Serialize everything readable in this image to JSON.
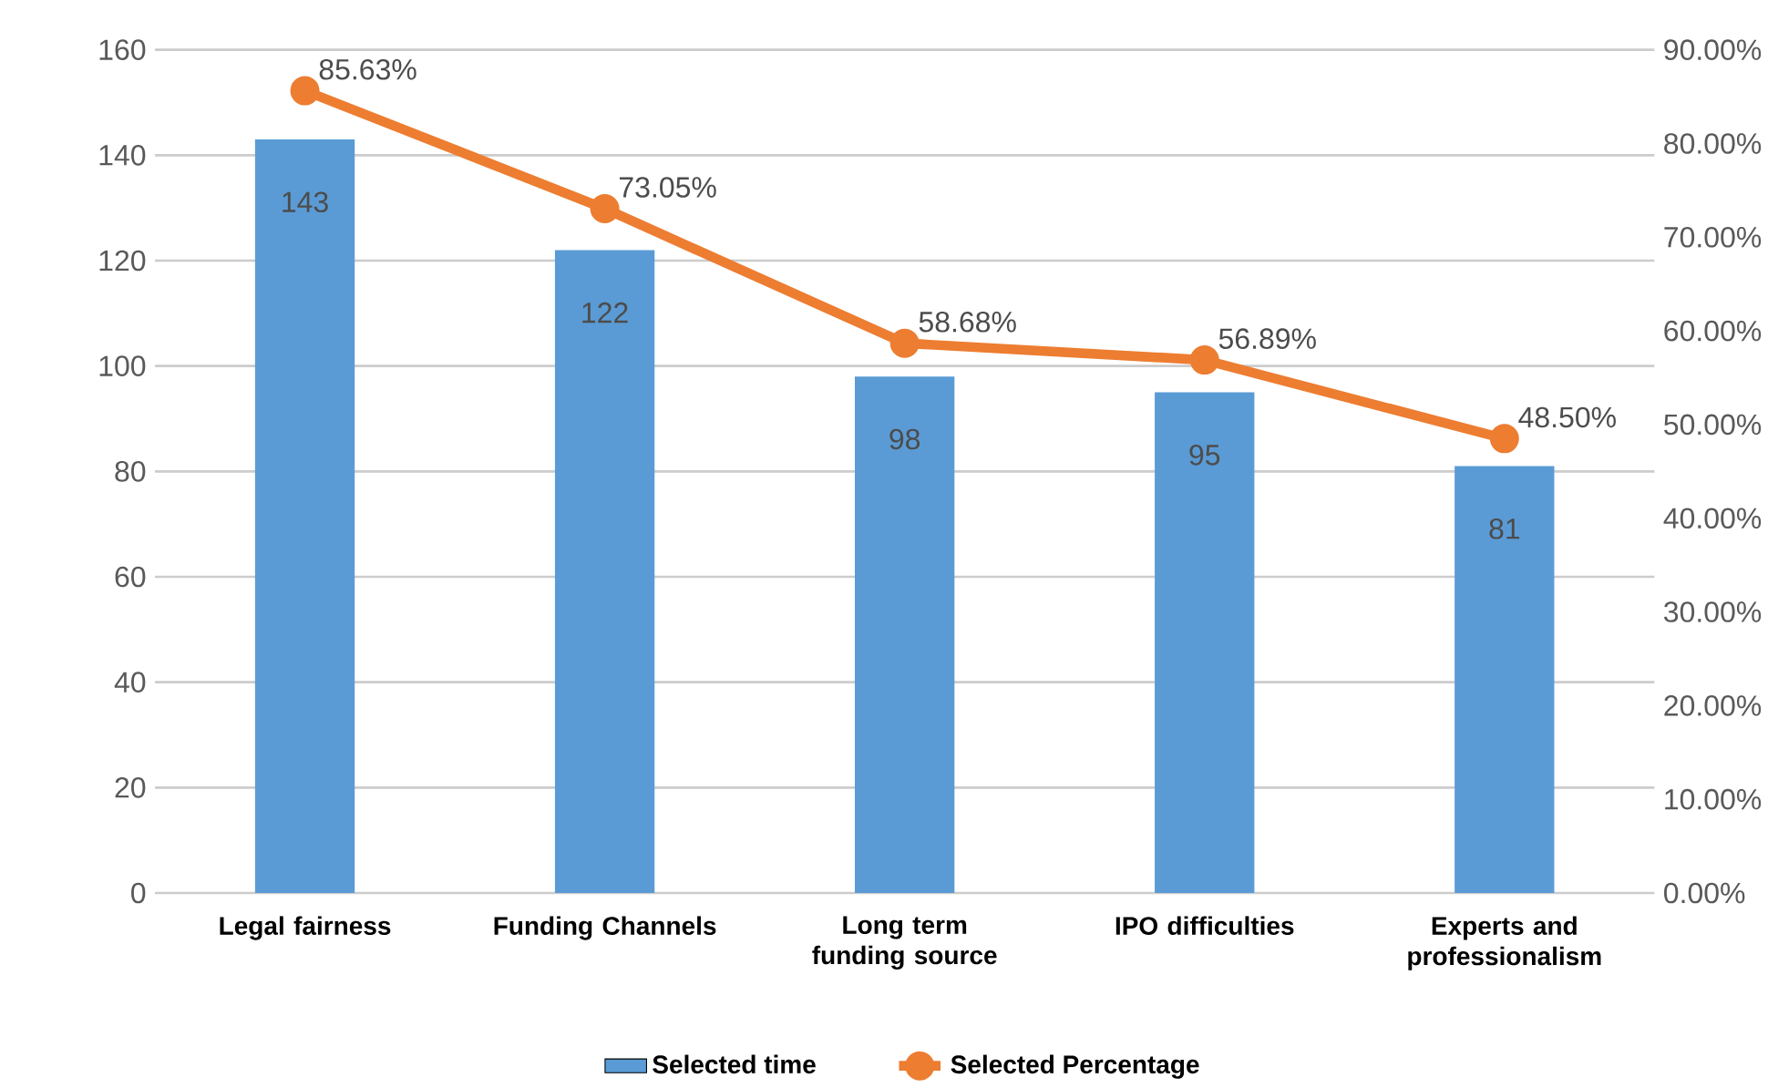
{
  "chart_data": {
    "type": "bar",
    "categories": [
      "Legal fairness",
      "Funding Channels",
      "Long term funding source",
      "IPO difficulties",
      "Experts and professionalism"
    ],
    "series": [
      {
        "name": "Selected time",
        "color": "#5b9bd5",
        "values": [
          143,
          122,
          98,
          95,
          81
        ],
        "value_labels": [
          "143",
          "122",
          "98",
          "95",
          "81"
        ]
      },
      {
        "name": "Selected Percentage",
        "type": "line",
        "axis": "y2",
        "color": "#ed7d31",
        "values": [
          85.63,
          73.05,
          58.68,
          56.89,
          48.5
        ],
        "value_labels": [
          "85.63%",
          "73.05%",
          "58.68%",
          "56.89%",
          "48.50%"
        ]
      }
    ],
    "ylim": [
      0,
      160
    ],
    "yticks": [
      0,
      20,
      40,
      60,
      80,
      100,
      120,
      140,
      160
    ],
    "y2lim": [
      0,
      90
    ],
    "y2ticks": [
      {
        "value": 0,
        "label": "0.00%"
      },
      {
        "value": 10,
        "label": "10.00%"
      },
      {
        "value": 20,
        "label": "20.00%"
      },
      {
        "value": 30,
        "label": "30.00%"
      },
      {
        "value": 40,
        "label": "40.00%"
      },
      {
        "value": 50,
        "label": "50.00%"
      },
      {
        "value": 60,
        "label": "60.00%"
      },
      {
        "value": 70,
        "label": "70.00%"
      },
      {
        "value": 80,
        "label": "80.00%"
      },
      {
        "value": 90,
        "label": "90.00%"
      }
    ],
    "grid": "y",
    "legend": "bottom",
    "marker": "circle",
    "line_style": "solid"
  }
}
